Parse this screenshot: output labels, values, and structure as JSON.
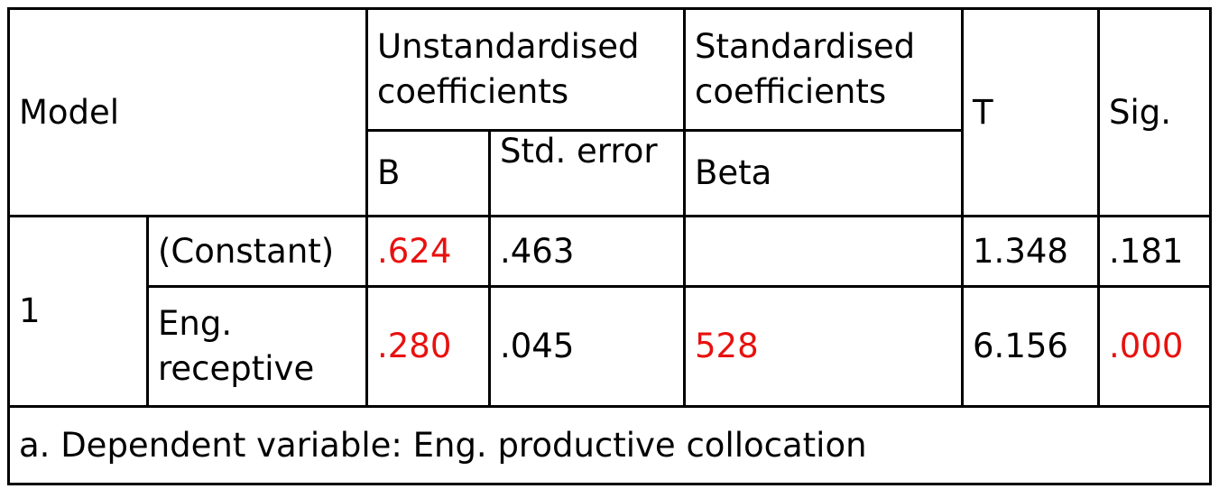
{
  "header": {
    "model": "Model",
    "unstandardised": "Unstandardised coefficients",
    "standardised": "Standardised coefficients",
    "t": "T",
    "sig": "Sig.",
    "b": "B",
    "std_error": "Std. error",
    "beta": "Beta"
  },
  "table": {
    "model": "1",
    "rows": [
      {
        "predictor": "(Constant)",
        "b": {
          "text": ".624",
          "color": "#e8110f"
        },
        "std_error": {
          "text": ".463"
        },
        "beta": null,
        "t": {
          "text": "1.348"
        },
        "sig": {
          "text": ".181"
        }
      },
      {
        "predictor": "Eng. receptive",
        "b": {
          "text": ".280",
          "color": "#e8110f"
        },
        "std_error": {
          "text": ".045"
        },
        "beta": {
          "text": "528",
          "color": "#e8110f"
        },
        "t": {
          "text": "6.156"
        },
        "sig": {
          "text": ".000",
          "color": "#e8110f"
        }
      }
    ]
  },
  "footnote": "a. Dependent variable: Eng. productive collocation"
}
